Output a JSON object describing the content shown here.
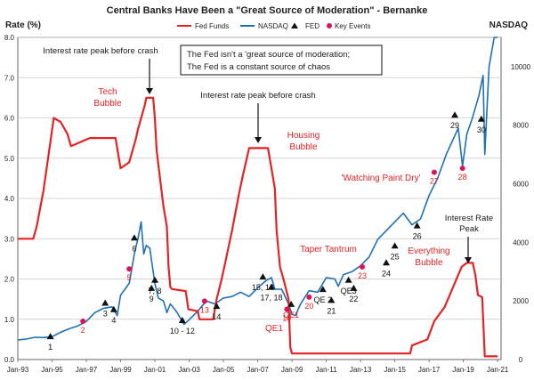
{
  "chart_data": {
    "type": "line",
    "title": "Central Banks Have Been a \"Great Source of Moderation\" - Bernanke",
    "ylabel_left": "Rate (%)",
    "ylabel_right": "NASDAQ",
    "ylim_left": [
      0,
      8
    ],
    "ylim_right": [
      0,
      11000
    ],
    "xlim": [
      1993.0,
      2021.2
    ],
    "x_ticks": [
      "Jan-93",
      "Jan-95",
      "Jan-97",
      "Jan-99",
      "Jan-01",
      "Jan-03",
      "Jan-05",
      "Jan-07",
      "Jan-09",
      "Jan-11",
      "Jan-13",
      "Jan-15",
      "Jan-17",
      "Jan-19",
      "Jan-21"
    ],
    "y_ticks_left": [
      "0.0",
      "1.0",
      "2.0",
      "3.0",
      "4.0",
      "5.0",
      "6.0",
      "7.0",
      "8.0"
    ],
    "y_ticks_right": [
      "0",
      "2000",
      "4000",
      "6000",
      "8000",
      "10000"
    ],
    "legend": {
      "fed_funds": "Fed Funds",
      "nasdaq": "NASDAQ",
      "fed": "FED",
      "key_events": "Key Events"
    },
    "series": [
      {
        "name": "Fed Funds",
        "axis": "left",
        "color": "#e32323",
        "x": [
          1993.0,
          1993.9,
          1994.1,
          1994.5,
          1994.9,
          1995.1,
          1995.5,
          1995.9,
          1996.0,
          1996.1,
          1997.2,
          1998.7,
          1998.9,
          1999.0,
          1999.5,
          1999.9,
          2000.0,
          2000.4,
          2000.5,
          2000.9,
          2001.0,
          2001.1,
          2001.3,
          2001.5,
          2001.7,
          2001.8,
          2001.9,
          2002.0,
          2002.8,
          2002.95,
          2003.5,
          2003.6,
          2004.4,
          2004.6,
          2004.9,
          2005.1,
          2005.5,
          2005.9,
          2006.1,
          2006.5,
          2007.6,
          2007.8,
          2008.0,
          2008.1,
          2008.3,
          2008.5,
          2008.8,
          2008.9,
          2009.0,
          2015.9,
          2016.0,
          2016.9,
          2017.3,
          2017.9,
          2018.3,
          2018.9,
          2019.2,
          2019.55,
          2019.7,
          2019.85,
          2020.1,
          2020.25,
          2021.0
        ],
        "values": [
          3.0,
          3.0,
          3.3,
          4.2,
          5.4,
          6.0,
          5.9,
          5.6,
          5.45,
          5.3,
          5.5,
          5.5,
          5.0,
          4.75,
          4.9,
          5.5,
          5.7,
          6.3,
          6.5,
          6.5,
          6.0,
          5.2,
          4.5,
          3.8,
          3.3,
          2.3,
          1.8,
          1.75,
          1.7,
          1.25,
          1.2,
          1.0,
          1.0,
          1.5,
          2.0,
          2.4,
          3.2,
          4.1,
          4.5,
          5.25,
          5.25,
          4.75,
          4.25,
          3.2,
          2.3,
          2.0,
          1.5,
          0.3,
          0.15,
          0.15,
          0.35,
          0.5,
          0.95,
          1.3,
          1.7,
          2.3,
          2.4,
          2.4,
          2.1,
          1.6,
          1.55,
          0.08,
          0.08
        ]
      },
      {
        "name": "NASDAQ",
        "axis": "right",
        "color": "#1f6fb4",
        "x": [
          1993.0,
          1993.5,
          1994.0,
          1994.5,
          1995.0,
          1995.5,
          1996.0,
          1996.5,
          1997.0,
          1997.5,
          1998.0,
          1998.5,
          1998.8,
          1999.0,
          1999.5,
          1999.8,
          2000.0,
          2000.2,
          2000.35,
          2000.5,
          2000.7,
          2001.0,
          2001.2,
          2001.5,
          2001.7,
          2001.9,
          2002.3,
          2002.7,
          2002.9,
          2003.5,
          2004.0,
          2004.5,
          2005.0,
          2005.5,
          2006.0,
          2006.5,
          2007.0,
          2007.5,
          2007.8,
          2008.0,
          2008.4,
          2008.8,
          2009.0,
          2009.2,
          2009.5,
          2010.0,
          2010.5,
          2011.0,
          2011.5,
          2011.7,
          2012.0,
          2012.5,
          2013.0,
          2013.5,
          2014.0,
          2014.5,
          2015.0,
          2015.5,
          2016.0,
          2016.5,
          2017.0,
          2017.5,
          2018.0,
          2018.7,
          2018.95,
          2019.2,
          2019.5,
          2019.9,
          2020.15,
          2020.25,
          2020.5,
          2020.8,
          2021.0
        ],
        "values": [
          670,
          700,
          760,
          750,
          780,
          930,
          1050,
          1150,
          1300,
          1600,
          1750,
          1800,
          1500,
          2200,
          2600,
          3600,
          4100,
          4700,
          3600,
          3900,
          3800,
          2600,
          2100,
          2000,
          1600,
          1900,
          1600,
          1200,
          1300,
          1650,
          2000,
          1900,
          2100,
          2150,
          2300,
          2150,
          2450,
          2700,
          2800,
          2400,
          2400,
          1900,
          1550,
          1500,
          1900,
          2350,
          2300,
          2800,
          2750,
          2500,
          2900,
          3000,
          3200,
          3500,
          4100,
          4400,
          4700,
          5000,
          4600,
          4800,
          5600,
          6200,
          7000,
          7900,
          6600,
          7700,
          8200,
          9000,
          9700,
          7000,
          10000,
          11000,
          13000
        ]
      }
    ],
    "fed_markers": {
      "name": "FED",
      "points": [
        {
          "label": "1",
          "x": 1994.9,
          "y": 0.55
        },
        {
          "label": "3",
          "x": 1998.1,
          "y": 1.38
        },
        {
          "label": "4",
          "x": 1998.6,
          "y": 1.22
        },
        {
          "label": "6",
          "x": 1999.8,
          "y": 3.0
        },
        {
          "label": "7, 8",
          "x": 2001.0,
          "y": 1.95
        },
        {
          "label": "9",
          "x": 2000.8,
          "y": 1.75
        },
        {
          "label": "10 - 12",
          "x": 2002.6,
          "y": 0.95
        },
        {
          "label": "14",
          "x": 2004.6,
          "y": 1.3
        },
        {
          "label": "15, 16",
          "x": 2007.3,
          "y": 2.03
        },
        {
          "label": "17, 18",
          "x": 2007.8,
          "y": 1.78
        },
        {
          "label": "QE1",
          "x": 2008.95,
          "y": 1.35
        },
        {
          "label": "QE 2",
          "x": 2010.8,
          "y": 1.72
        },
        {
          "label": "21",
          "x": 2011.3,
          "y": 1.45
        },
        {
          "label": "QE3",
          "x": 2012.3,
          "y": 1.95
        },
        {
          "label": "22",
          "x": 2012.6,
          "y": 1.75
        },
        {
          "label": "24",
          "x": 2014.5,
          "y": 2.38
        },
        {
          "label": "25",
          "x": 2015.0,
          "y": 2.8
        },
        {
          "label": "26",
          "x": 2016.3,
          "y": 3.3
        },
        {
          "label": "29",
          "x": 2018.5,
          "y": 6.05
        },
        {
          "label": "30",
          "x": 2020.05,
          "y": 5.95
        }
      ]
    },
    "key_events": {
      "name": "Key Events",
      "points": [
        {
          "label": "2",
          "x": 1996.8,
          "y": 0.95
        },
        {
          "label": "5",
          "x": 1999.5,
          "y": 2.25
        },
        {
          "label": "13",
          "x": 2003.9,
          "y": 1.45
        },
        {
          "label": "19",
          "x": 2008.7,
          "y": 1.25
        },
        {
          "label": "20",
          "x": 2010.0,
          "y": 1.55
        },
        {
          "label": "23",
          "x": 2013.1,
          "y": 2.3
        },
        {
          "label": "27",
          "x": 2017.3,
          "y": 4.65
        },
        {
          "label": "28",
          "x": 2018.95,
          "y": 4.75
        }
      ]
    },
    "annotations": {
      "peak_2000": "Interest rate peak before crash",
      "peak_2007": "Interest  rate peak before crash",
      "quote_line1": "The Fed isn't a 'great source of moderation;",
      "quote_line2": "The Fed is a constant source of chaos",
      "tech_bubble_1": "Tech",
      "tech_bubble_2": "Bubble",
      "housing_bubble_1": "Housing",
      "housing_bubble_2": "Bubble",
      "watching_paint": "'Watching Paint Dry'",
      "taper_tantrum": "Taper Tantrum",
      "everything_1": "Everything",
      "everything_2": "Bubble",
      "interest_peak_1": "Interest Rate",
      "interest_peak_2": "Peak",
      "qe1": "QE1"
    }
  }
}
